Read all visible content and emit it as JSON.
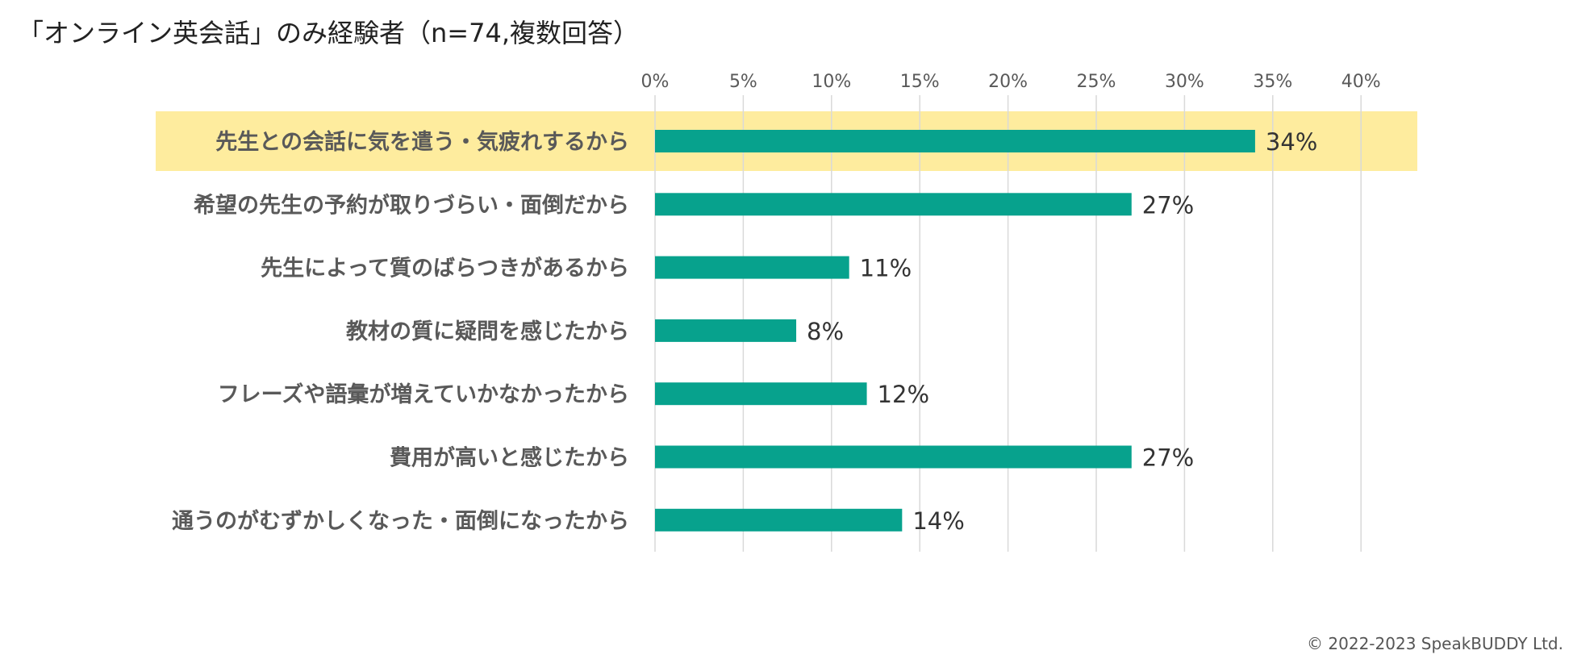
{
  "title": "「オンライン英会話」のみ経験者（n=74,複数回答）",
  "copyright": "© 2022-2023 SpeakBUDDY Ltd.",
  "colors": {
    "bar": "#07A28D",
    "highlight": "#FEEC9E",
    "grid": "#D9D9D9",
    "category_text": "#595959",
    "tick_text": "#595959",
    "value_text": "#333333"
  },
  "chart_data": {
    "type": "bar",
    "orientation": "horizontal",
    "title": "「オンライン英会話」のみ経験者（n=74,複数回答）",
    "xlabel": "",
    "ylabel": "",
    "xlim": [
      0,
      40
    ],
    "ticks": [
      "0%",
      "5%",
      "10%",
      "15%",
      "20%",
      "25%",
      "30%",
      "35%",
      "40%"
    ],
    "tick_values": [
      0,
      5,
      10,
      15,
      20,
      25,
      30,
      35,
      40
    ],
    "grid": true,
    "highlighted_index": 0,
    "categories": [
      "先生との会話に気を遣う・気疲れするから",
      "希望の先生の予約が取りづらい・面倒だから",
      "先生によって質のばらつきがあるから",
      "教材の質に疑問を感じたから",
      "フレーズや語彙が増えていかなかったから",
      "費用が高いと感じたから",
      "通うのがむずかしくなった・面倒になったから"
    ],
    "values": [
      34,
      27,
      11,
      8,
      12,
      27,
      14
    ],
    "value_labels": [
      "34%",
      "27%",
      "11%",
      "8%",
      "12%",
      "27%",
      "14%"
    ]
  }
}
